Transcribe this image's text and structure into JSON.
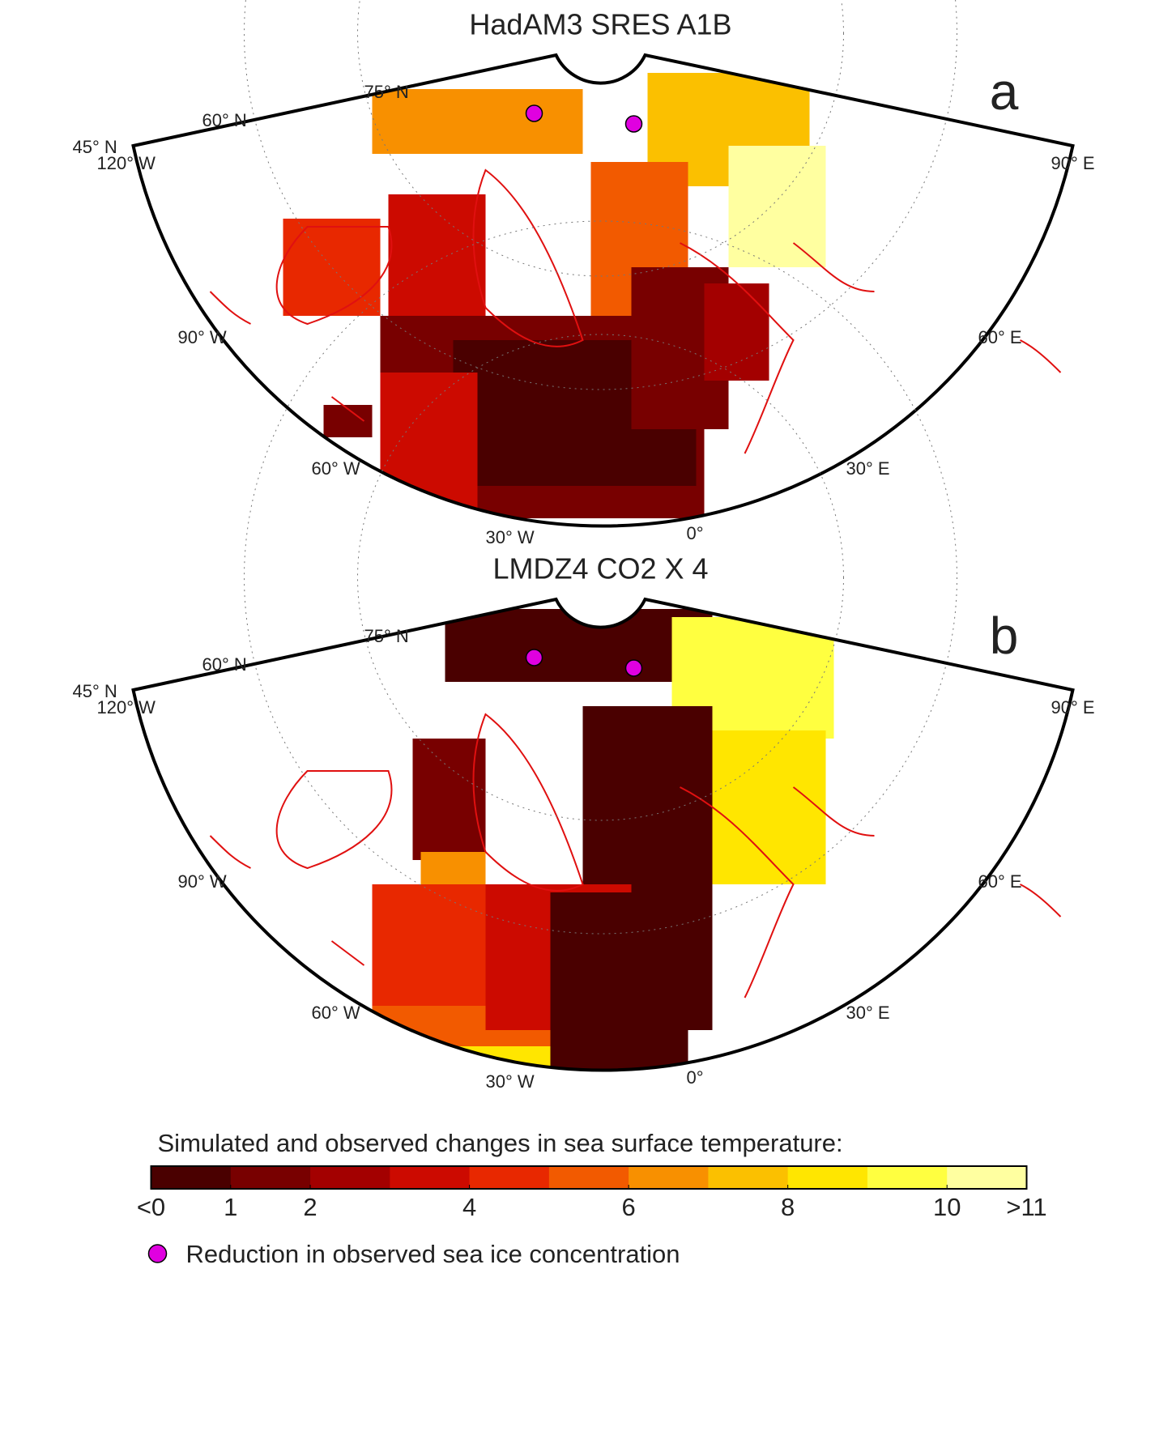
{
  "panels": [
    {
      "title": "HadAM3 SRES A1B",
      "letter": "a",
      "labels": [
        "75° N",
        "60° N",
        "45° N",
        "120° W",
        "90° W",
        "60° W",
        "30° W",
        "0°",
        "30° E",
        "60° E",
        "90° E"
      ]
    },
    {
      "title": "LMDZ4 CO2 X 4",
      "letter": "b",
      "labels": [
        "75° N",
        "60° N",
        "45° N",
        "120° W",
        "90° W",
        "60° W",
        "30° W",
        "0°",
        "30° E",
        "60° E",
        "90° E"
      ]
    }
  ],
  "colorbar": {
    "title": "Simulated and observed changes in sea surface temperature:",
    "lim": [
      0,
      11
    ],
    "ticks": [
      {
        "value": 0,
        "label": "<0"
      },
      1,
      2,
      4,
      6,
      8,
      10,
      {
        "value": 11,
        "label": ">11"
      }
    ],
    "colors": [
      "#4a0000",
      "#780000",
      "#a30000",
      "#cc0a00",
      "#e82800",
      "#f25a00",
      "#f89000",
      "#fbc000",
      "#ffe600",
      "#ffff40",
      "#ffffa0"
    ]
  },
  "legend": {
    "marker_color": "#e000e0",
    "label": "Reduction in observed sea ice concentration"
  }
}
